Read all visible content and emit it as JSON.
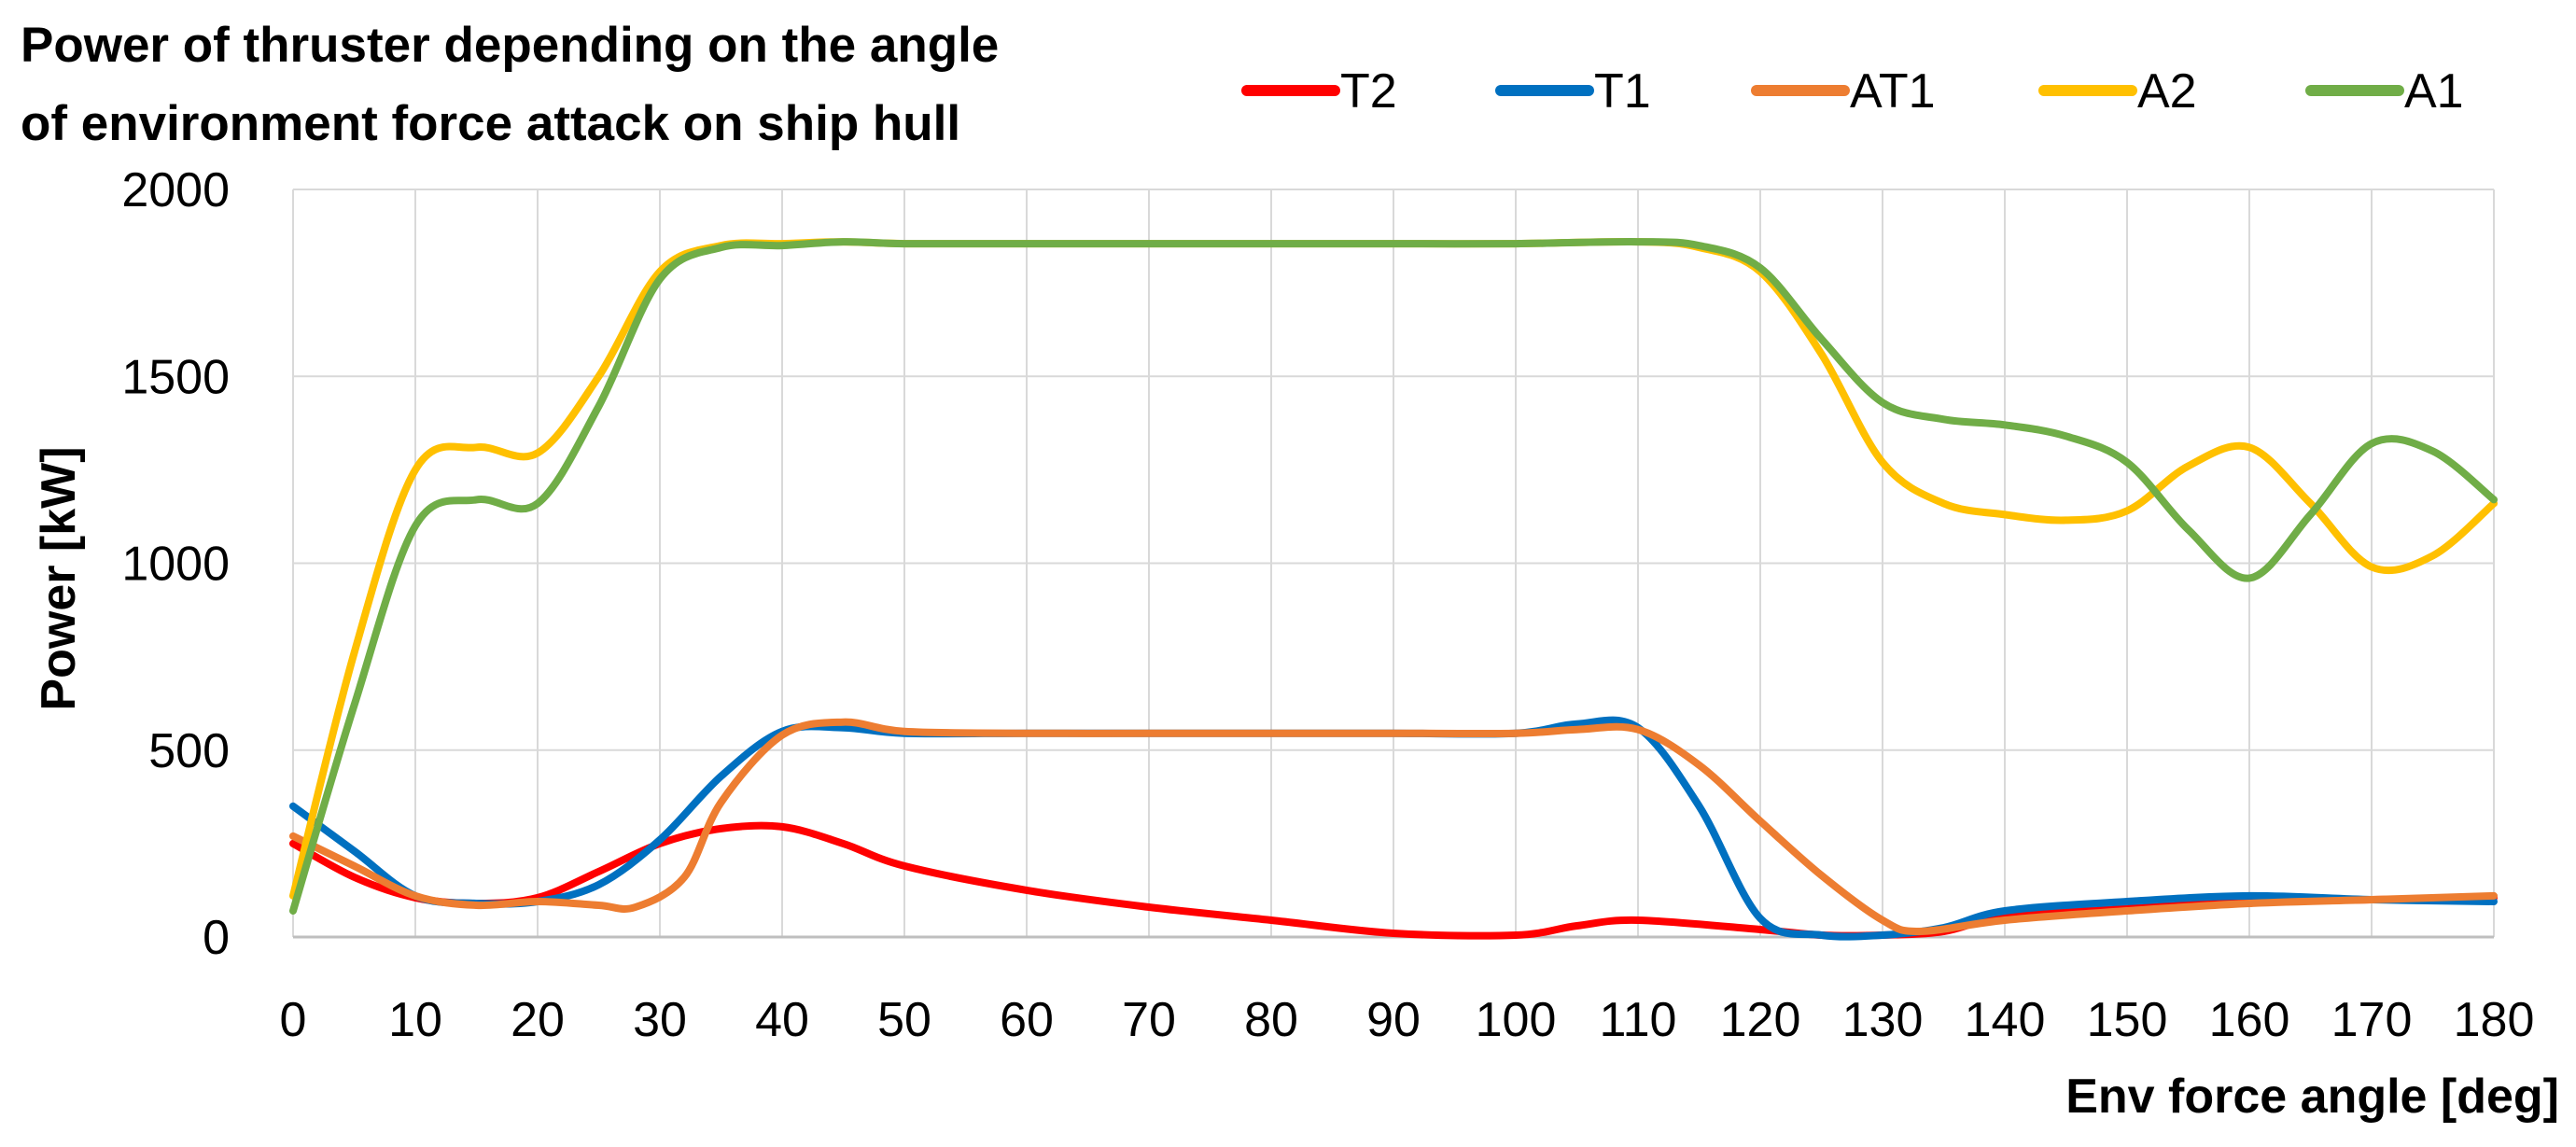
{
  "chart_data": {
    "type": "line",
    "title_lines": [
      "Power of thruster depending on the angle",
      "of environment force attack on ship hull"
    ],
    "xlabel": "Env force angle [deg]",
    "ylabel": "Power [kW]",
    "xlim": [
      0,
      180
    ],
    "ylim": [
      0,
      2000
    ],
    "x_ticks": [
      0,
      10,
      20,
      30,
      40,
      50,
      60,
      70,
      80,
      90,
      100,
      110,
      120,
      130,
      140,
      150,
      160,
      170,
      180
    ],
    "y_ticks": [
      0,
      500,
      1000,
      1500,
      2000
    ],
    "grid": true,
    "legend_position": "top-right",
    "series": [
      {
        "name": "T2",
        "color": "#ff0000",
        "points": [
          [
            0,
            250
          ],
          [
            5,
            160
          ],
          [
            10,
            105
          ],
          [
            15,
            90
          ],
          [
            20,
            105
          ],
          [
            25,
            175
          ],
          [
            30,
            250
          ],
          [
            35,
            290
          ],
          [
            40,
            295
          ],
          [
            45,
            250
          ],
          [
            50,
            190
          ],
          [
            60,
            125
          ],
          [
            70,
            80
          ],
          [
            80,
            45
          ],
          [
            90,
            10
          ],
          [
            100,
            5
          ],
          [
            105,
            30
          ],
          [
            110,
            45
          ],
          [
            120,
            20
          ],
          [
            125,
            5
          ],
          [
            130,
            5
          ],
          [
            135,
            15
          ],
          [
            140,
            55
          ],
          [
            150,
            80
          ],
          [
            160,
            95
          ],
          [
            170,
            100
          ],
          [
            180,
            105
          ]
        ]
      },
      {
        "name": "T1",
        "color": "#0070c0",
        "points": [
          [
            0,
            350
          ],
          [
            5,
            230
          ],
          [
            10,
            110
          ],
          [
            15,
            90
          ],
          [
            20,
            95
          ],
          [
            25,
            140
          ],
          [
            30,
            260
          ],
          [
            35,
            430
          ],
          [
            40,
            550
          ],
          [
            45,
            560
          ],
          [
            50,
            545
          ],
          [
            60,
            545
          ],
          [
            70,
            545
          ],
          [
            80,
            545
          ],
          [
            90,
            545
          ],
          [
            100,
            545
          ],
          [
            105,
            570
          ],
          [
            110,
            560
          ],
          [
            115,
            350
          ],
          [
            120,
            50
          ],
          [
            125,
            5
          ],
          [
            130,
            5
          ],
          [
            135,
            25
          ],
          [
            140,
            70
          ],
          [
            150,
            95
          ],
          [
            160,
            110
          ],
          [
            170,
            100
          ],
          [
            180,
            95
          ]
        ]
      },
      {
        "name": "AT1",
        "color": "#ed7d31",
        "points": [
          [
            0,
            270
          ],
          [
            5,
            190
          ],
          [
            10,
            110
          ],
          [
            15,
            85
          ],
          [
            20,
            95
          ],
          [
            25,
            85
          ],
          [
            28,
            80
          ],
          [
            32,
            160
          ],
          [
            35,
            360
          ],
          [
            40,
            540
          ],
          [
            45,
            575
          ],
          [
            50,
            550
          ],
          [
            60,
            545
          ],
          [
            70,
            545
          ],
          [
            80,
            545
          ],
          [
            90,
            545
          ],
          [
            100,
            545
          ],
          [
            105,
            555
          ],
          [
            110,
            555
          ],
          [
            115,
            460
          ],
          [
            120,
            310
          ],
          [
            125,
            165
          ],
          [
            130,
            45
          ],
          [
            133,
            15
          ],
          [
            140,
            45
          ],
          [
            150,
            70
          ],
          [
            160,
            90
          ],
          [
            170,
            100
          ],
          [
            180,
            110
          ]
        ]
      },
      {
        "name": "A2",
        "color": "#ffc000",
        "points": [
          [
            0,
            110
          ],
          [
            5,
            760
          ],
          [
            10,
            1250
          ],
          [
            15,
            1310
          ],
          [
            20,
            1295
          ],
          [
            25,
            1500
          ],
          [
            30,
            1780
          ],
          [
            35,
            1850
          ],
          [
            40,
            1855
          ],
          [
            45,
            1860
          ],
          [
            50,
            1855
          ],
          [
            60,
            1855
          ],
          [
            70,
            1855
          ],
          [
            80,
            1855
          ],
          [
            90,
            1855
          ],
          [
            100,
            1855
          ],
          [
            110,
            1860
          ],
          [
            115,
            1845
          ],
          [
            120,
            1780
          ],
          [
            125,
            1560
          ],
          [
            130,
            1270
          ],
          [
            135,
            1160
          ],
          [
            140,
            1130
          ],
          [
            145,
            1115
          ],
          [
            150,
            1140
          ],
          [
            155,
            1260
          ],
          [
            160,
            1310
          ],
          [
            165,
            1160
          ],
          [
            170,
            990
          ],
          [
            175,
            1020
          ],
          [
            180,
            1160
          ]
        ]
      },
      {
        "name": "A1",
        "color": "#70ad47",
        "points": [
          [
            0,
            70
          ],
          [
            5,
            620
          ],
          [
            10,
            1100
          ],
          [
            15,
            1170
          ],
          [
            20,
            1160
          ],
          [
            25,
            1420
          ],
          [
            30,
            1760
          ],
          [
            35,
            1845
          ],
          [
            40,
            1850
          ],
          [
            45,
            1860
          ],
          [
            50,
            1855
          ],
          [
            60,
            1855
          ],
          [
            70,
            1855
          ],
          [
            80,
            1855
          ],
          [
            90,
            1855
          ],
          [
            100,
            1855
          ],
          [
            110,
            1860
          ],
          [
            115,
            1850
          ],
          [
            120,
            1790
          ],
          [
            125,
            1600
          ],
          [
            130,
            1430
          ],
          [
            135,
            1385
          ],
          [
            140,
            1370
          ],
          [
            145,
            1340
          ],
          [
            150,
            1270
          ],
          [
            155,
            1090
          ],
          [
            160,
            960
          ],
          [
            165,
            1130
          ],
          [
            170,
            1320
          ],
          [
            175,
            1300
          ],
          [
            180,
            1170
          ]
        ]
      }
    ]
  }
}
